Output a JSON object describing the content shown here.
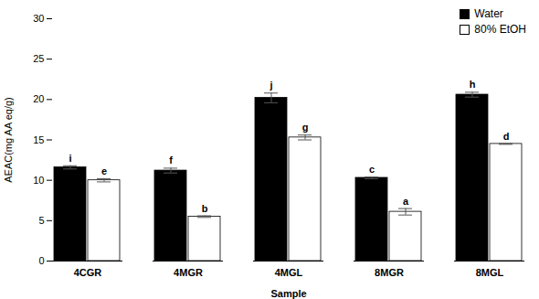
{
  "chart_data": {
    "type": "bar",
    "x_label": "Sample",
    "y_label": "AEAC(mg AA eq/g)",
    "categories": [
      "4CGR",
      "4MGR",
      "4MGL",
      "8MGR",
      "8MGL"
    ],
    "series": [
      {
        "name": "Water",
        "color": "#000000",
        "values": [
          11.6,
          11.2,
          20.2,
          10.3,
          20.6
        ],
        "errors": [
          0.2,
          0.3,
          0.6,
          0.1,
          0.3
        ],
        "annotations": [
          "i",
          "f",
          "j",
          "c",
          "h"
        ]
      },
      {
        "name": "80% EtOH",
        "color": "#ffffff",
        "values": [
          10.0,
          5.5,
          15.3,
          6.1,
          14.5
        ],
        "errors": [
          0.2,
          0.1,
          0.3,
          0.4,
          0.05
        ],
        "annotations": [
          "e",
          "b",
          "g",
          "a",
          "d"
        ]
      }
    ],
    "ylim": [
      0,
      30
    ],
    "yticks": [
      0,
      5,
      10,
      15,
      20,
      25,
      30
    ],
    "legend": "top-right",
    "grid": false
  }
}
